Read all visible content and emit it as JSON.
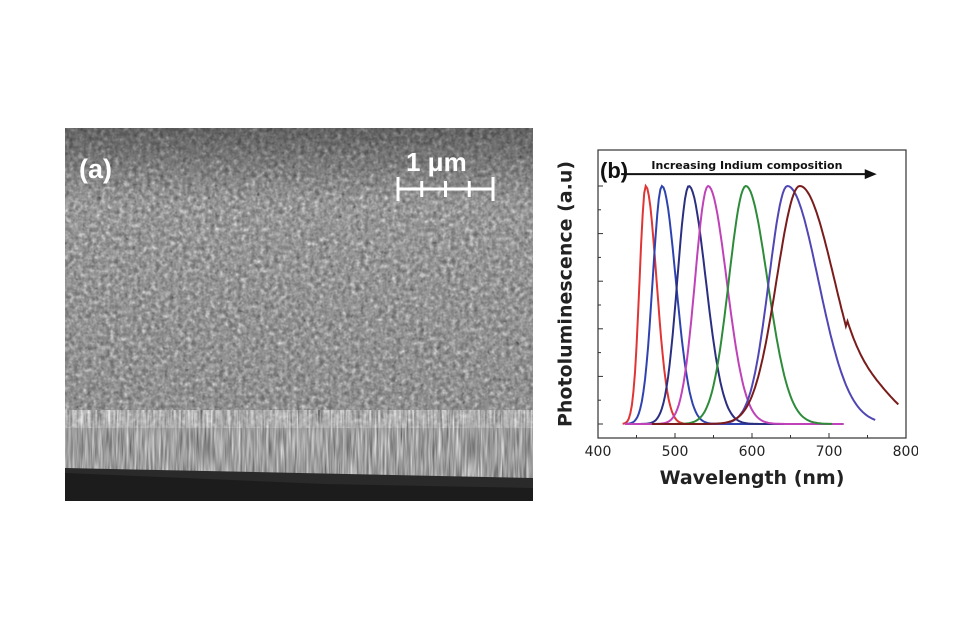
{
  "panel_a": {
    "label": "(a)",
    "scale_bar": {
      "label": "1 μm",
      "ticks": 5
    }
  },
  "panel_b": {
    "label": "(b)"
  },
  "chart_data": {
    "type": "line",
    "title": "",
    "xlabel": "Wavelength (nm)",
    "ylabel": "Photoluminescence (a.u)",
    "xlim": [
      400,
      800
    ],
    "ylim": [
      0,
      1
    ],
    "xticks": [
      400,
      500,
      600,
      700,
      800
    ],
    "show_y_tick_labels": false,
    "grid": false,
    "legend": null,
    "annotation": {
      "text": "Increasing Indium composition",
      "x_start": 430,
      "x_end": 762,
      "y": 1.05
    },
    "series": [
      {
        "color": "#e03535",
        "peak": 462,
        "width_left": 8,
        "width_right": 14,
        "x_range": [
          432,
          710
        ]
      },
      {
        "color": "#2f43b0",
        "peak": 483,
        "width_left": 12,
        "width_right": 18,
        "x_range": [
          435,
          710
        ]
      },
      {
        "color": "#2b2f80",
        "peak": 518,
        "width_left": 15,
        "width_right": 22,
        "x_range": [
          435,
          720
        ]
      },
      {
        "color": "#c042b8",
        "peak": 543,
        "width_left": 17,
        "width_right": 24,
        "x_range": [
          435,
          720
        ]
      },
      {
        "color": "#2e8b3a",
        "peak": 592,
        "width_left": 22,
        "width_right": 28,
        "x_range": [
          470,
          705
        ]
      },
      {
        "color": "#5046b4",
        "peak": 646,
        "width_left": 24,
        "width_right": 40,
        "x_range": [
          470,
          760
        ]
      },
      {
        "color": "#7a1c1c",
        "peak": 662,
        "width_left": 30,
        "width_right": 45,
        "x_range": [
          470,
          790
        ]
      }
    ]
  }
}
